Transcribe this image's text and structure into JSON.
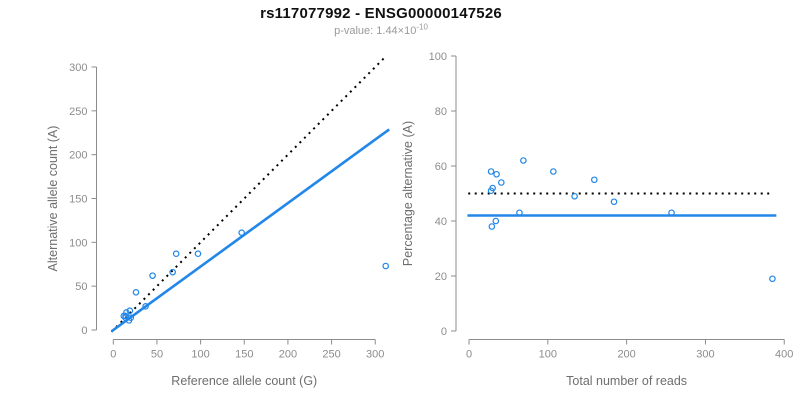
{
  "header": {
    "title": "rs117077992 - ENSG00000147526",
    "subtitle_base": "p-value: 1.44×10",
    "subtitle_exponent": "-10"
  },
  "colors": {
    "accent_blue": "#2287E9",
    "dotted_line": "#000000",
    "axis_gray": "#8C8C8C",
    "tick_label_gray": "#8C8C8C",
    "axis_label_gray": "#6E6E6E"
  },
  "chart_data": [
    {
      "type": "scatter",
      "panel": "left",
      "xlabel": "Reference allele count (G)",
      "ylabel": "Alternative allele count (A)",
      "xlim": [
        0,
        300
      ],
      "ylim": [
        0,
        300
      ],
      "xticks": [
        0,
        50,
        100,
        150,
        200,
        250,
        300
      ],
      "yticks": [
        0,
        50,
        100,
        150,
        200,
        250,
        300
      ],
      "grid": false,
      "legend": null,
      "marker": "open-circle",
      "points": [
        [
          12,
          16
        ],
        [
          14,
          14
        ],
        [
          18,
          11
        ],
        [
          14,
          16
        ],
        [
          20,
          14
        ],
        [
          15,
          20
        ],
        [
          19,
          22
        ],
        [
          37,
          27
        ],
        [
          26,
          43
        ],
        [
          45,
          62
        ],
        [
          68,
          66
        ],
        [
          72,
          87
        ],
        [
          97,
          87
        ],
        [
          147,
          111
        ],
        [
          312,
          73
        ]
      ],
      "lines": [
        {
          "name": "identity-line",
          "style": "dotted",
          "color": "dotted_line",
          "slope": 1,
          "intercept": 0,
          "x_range": [
            -2,
            313
          ]
        },
        {
          "name": "fit-line",
          "style": "solid",
          "color": "accent_blue",
          "slope": 0.724,
          "intercept": 0,
          "x_range": [
            -2,
            316
          ]
        }
      ]
    },
    {
      "type": "scatter",
      "panel": "right",
      "xlabel": "Total number of reads",
      "ylabel": "Percentage alternative (A)",
      "xlim": [
        0,
        400
      ],
      "ylim": [
        0,
        100
      ],
      "xticks": [
        0,
        100,
        200,
        300,
        400
      ],
      "yticks": [
        0,
        20,
        40,
        60,
        80,
        100
      ],
      "grid": false,
      "legend": null,
      "marker": "open-circle",
      "points": [
        [
          28,
          58
        ],
        [
          28,
          51
        ],
        [
          29,
          38
        ],
        [
          30,
          52
        ],
        [
          34,
          40
        ],
        [
          35,
          57
        ],
        [
          41,
          54
        ],
        [
          64,
          43
        ],
        [
          69,
          62
        ],
        [
          107,
          58
        ],
        [
          134,
          49
        ],
        [
          159,
          55
        ],
        [
          184,
          47
        ],
        [
          257,
          43
        ],
        [
          385,
          19
        ]
      ],
      "lines": [
        {
          "name": "null-line",
          "style": "dotted",
          "color": "dotted_line",
          "slope": 0,
          "intercept": 50,
          "x_range": [
            -1,
            386
          ]
        },
        {
          "name": "fit-line",
          "style": "solid",
          "color": "accent_blue",
          "slope": 0,
          "intercept": 42,
          "x_range": [
            -2,
            390
          ]
        }
      ]
    }
  ]
}
